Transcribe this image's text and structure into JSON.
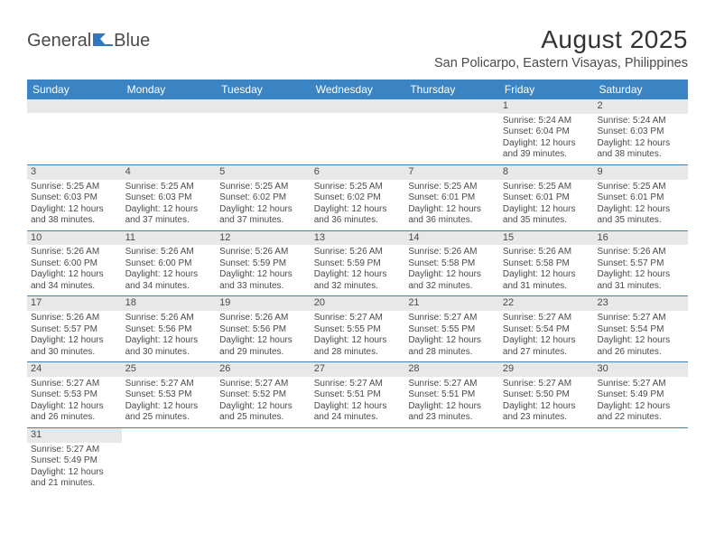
{
  "logo": {
    "text1": "General",
    "text2": "Blue"
  },
  "title": "August 2025",
  "location": "San Policarpo, Eastern Visayas, Philippines",
  "weekdays": [
    "Sunday",
    "Monday",
    "Tuesday",
    "Wednesday",
    "Thursday",
    "Friday",
    "Saturday"
  ],
  "colors": {
    "header_bg": "#3b84c4",
    "row_border": "#3b84c4",
    "daynum_bg": "#e8e8e8",
    "text": "#4a4a4a"
  },
  "weeks": [
    [
      {
        "n": "",
        "sr": "",
        "ss": "",
        "dl": ""
      },
      {
        "n": "",
        "sr": "",
        "ss": "",
        "dl": ""
      },
      {
        "n": "",
        "sr": "",
        "ss": "",
        "dl": ""
      },
      {
        "n": "",
        "sr": "",
        "ss": "",
        "dl": ""
      },
      {
        "n": "",
        "sr": "",
        "ss": "",
        "dl": ""
      },
      {
        "n": "1",
        "sr": "Sunrise: 5:24 AM",
        "ss": "Sunset: 6:04 PM",
        "dl": "Daylight: 12 hours and 39 minutes."
      },
      {
        "n": "2",
        "sr": "Sunrise: 5:24 AM",
        "ss": "Sunset: 6:03 PM",
        "dl": "Daylight: 12 hours and 38 minutes."
      }
    ],
    [
      {
        "n": "3",
        "sr": "Sunrise: 5:25 AM",
        "ss": "Sunset: 6:03 PM",
        "dl": "Daylight: 12 hours and 38 minutes."
      },
      {
        "n": "4",
        "sr": "Sunrise: 5:25 AM",
        "ss": "Sunset: 6:03 PM",
        "dl": "Daylight: 12 hours and 37 minutes."
      },
      {
        "n": "5",
        "sr": "Sunrise: 5:25 AM",
        "ss": "Sunset: 6:02 PM",
        "dl": "Daylight: 12 hours and 37 minutes."
      },
      {
        "n": "6",
        "sr": "Sunrise: 5:25 AM",
        "ss": "Sunset: 6:02 PM",
        "dl": "Daylight: 12 hours and 36 minutes."
      },
      {
        "n": "7",
        "sr": "Sunrise: 5:25 AM",
        "ss": "Sunset: 6:01 PM",
        "dl": "Daylight: 12 hours and 36 minutes."
      },
      {
        "n": "8",
        "sr": "Sunrise: 5:25 AM",
        "ss": "Sunset: 6:01 PM",
        "dl": "Daylight: 12 hours and 35 minutes."
      },
      {
        "n": "9",
        "sr": "Sunrise: 5:25 AM",
        "ss": "Sunset: 6:01 PM",
        "dl": "Daylight: 12 hours and 35 minutes."
      }
    ],
    [
      {
        "n": "10",
        "sr": "Sunrise: 5:26 AM",
        "ss": "Sunset: 6:00 PM",
        "dl": "Daylight: 12 hours and 34 minutes."
      },
      {
        "n": "11",
        "sr": "Sunrise: 5:26 AM",
        "ss": "Sunset: 6:00 PM",
        "dl": "Daylight: 12 hours and 34 minutes."
      },
      {
        "n": "12",
        "sr": "Sunrise: 5:26 AM",
        "ss": "Sunset: 5:59 PM",
        "dl": "Daylight: 12 hours and 33 minutes."
      },
      {
        "n": "13",
        "sr": "Sunrise: 5:26 AM",
        "ss": "Sunset: 5:59 PM",
        "dl": "Daylight: 12 hours and 32 minutes."
      },
      {
        "n": "14",
        "sr": "Sunrise: 5:26 AM",
        "ss": "Sunset: 5:58 PM",
        "dl": "Daylight: 12 hours and 32 minutes."
      },
      {
        "n": "15",
        "sr": "Sunrise: 5:26 AM",
        "ss": "Sunset: 5:58 PM",
        "dl": "Daylight: 12 hours and 31 minutes."
      },
      {
        "n": "16",
        "sr": "Sunrise: 5:26 AM",
        "ss": "Sunset: 5:57 PM",
        "dl": "Daylight: 12 hours and 31 minutes."
      }
    ],
    [
      {
        "n": "17",
        "sr": "Sunrise: 5:26 AM",
        "ss": "Sunset: 5:57 PM",
        "dl": "Daylight: 12 hours and 30 minutes."
      },
      {
        "n": "18",
        "sr": "Sunrise: 5:26 AM",
        "ss": "Sunset: 5:56 PM",
        "dl": "Daylight: 12 hours and 30 minutes."
      },
      {
        "n": "19",
        "sr": "Sunrise: 5:26 AM",
        "ss": "Sunset: 5:56 PM",
        "dl": "Daylight: 12 hours and 29 minutes."
      },
      {
        "n": "20",
        "sr": "Sunrise: 5:27 AM",
        "ss": "Sunset: 5:55 PM",
        "dl": "Daylight: 12 hours and 28 minutes."
      },
      {
        "n": "21",
        "sr": "Sunrise: 5:27 AM",
        "ss": "Sunset: 5:55 PM",
        "dl": "Daylight: 12 hours and 28 minutes."
      },
      {
        "n": "22",
        "sr": "Sunrise: 5:27 AM",
        "ss": "Sunset: 5:54 PM",
        "dl": "Daylight: 12 hours and 27 minutes."
      },
      {
        "n": "23",
        "sr": "Sunrise: 5:27 AM",
        "ss": "Sunset: 5:54 PM",
        "dl": "Daylight: 12 hours and 26 minutes."
      }
    ],
    [
      {
        "n": "24",
        "sr": "Sunrise: 5:27 AM",
        "ss": "Sunset: 5:53 PM",
        "dl": "Daylight: 12 hours and 26 minutes."
      },
      {
        "n": "25",
        "sr": "Sunrise: 5:27 AM",
        "ss": "Sunset: 5:53 PM",
        "dl": "Daylight: 12 hours and 25 minutes."
      },
      {
        "n": "26",
        "sr": "Sunrise: 5:27 AM",
        "ss": "Sunset: 5:52 PM",
        "dl": "Daylight: 12 hours and 25 minutes."
      },
      {
        "n": "27",
        "sr": "Sunrise: 5:27 AM",
        "ss": "Sunset: 5:51 PM",
        "dl": "Daylight: 12 hours and 24 minutes."
      },
      {
        "n": "28",
        "sr": "Sunrise: 5:27 AM",
        "ss": "Sunset: 5:51 PM",
        "dl": "Daylight: 12 hours and 23 minutes."
      },
      {
        "n": "29",
        "sr": "Sunrise: 5:27 AM",
        "ss": "Sunset: 5:50 PM",
        "dl": "Daylight: 12 hours and 23 minutes."
      },
      {
        "n": "30",
        "sr": "Sunrise: 5:27 AM",
        "ss": "Sunset: 5:49 PM",
        "dl": "Daylight: 12 hours and 22 minutes."
      }
    ],
    [
      {
        "n": "31",
        "sr": "Sunrise: 5:27 AM",
        "ss": "Sunset: 5:49 PM",
        "dl": "Daylight: 12 hours and 21 minutes."
      },
      {
        "n": "",
        "sr": "",
        "ss": "",
        "dl": ""
      },
      {
        "n": "",
        "sr": "",
        "ss": "",
        "dl": ""
      },
      {
        "n": "",
        "sr": "",
        "ss": "",
        "dl": ""
      },
      {
        "n": "",
        "sr": "",
        "ss": "",
        "dl": ""
      },
      {
        "n": "",
        "sr": "",
        "ss": "",
        "dl": ""
      },
      {
        "n": "",
        "sr": "",
        "ss": "",
        "dl": ""
      }
    ]
  ]
}
